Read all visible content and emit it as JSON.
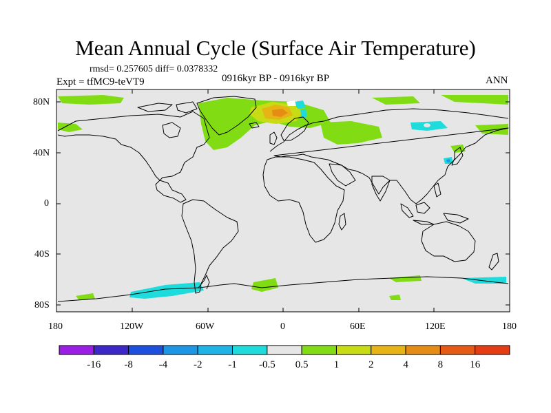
{
  "title": "Mean Annual Cycle (Surface Air Temperature)",
  "stats": "rmsd= 0.257605 diff= 0.0378332",
  "expt": "Expt = tfMC9-teVT9",
  "period": "0916kyr BP - 0916kyr BP",
  "season": "ANN",
  "lat_ticks": [
    "80N",
    "40N",
    "0",
    "40S",
    "80S"
  ],
  "lon_ticks": [
    "180",
    "120W",
    "60W",
    "0",
    "60E",
    "120E",
    "180"
  ],
  "colorbar": {
    "colors": [
      "#9a1ee6",
      "#3c28c8",
      "#1e50e0",
      "#1e96e6",
      "#1eb4e6",
      "#1edcdc",
      "#e6e6e6",
      "#82dc14",
      "#c8dc14",
      "#e6b414",
      "#e68c14",
      "#e65a14",
      "#e63c14"
    ],
    "labels": [
      "-16",
      "-8",
      "-4",
      "-2",
      "-1",
      "-0.5",
      "0.5",
      "1",
      "2",
      "4",
      "8",
      "16"
    ]
  },
  "colors": {
    "background": "#e6e6e6",
    "green": "#82dc14",
    "yellow": "#c8dc14",
    "orange": "#e6b414",
    "dark_orange": "#e68c14",
    "cyan": "#1edcdc",
    "blue": "#1e96e6"
  }
}
